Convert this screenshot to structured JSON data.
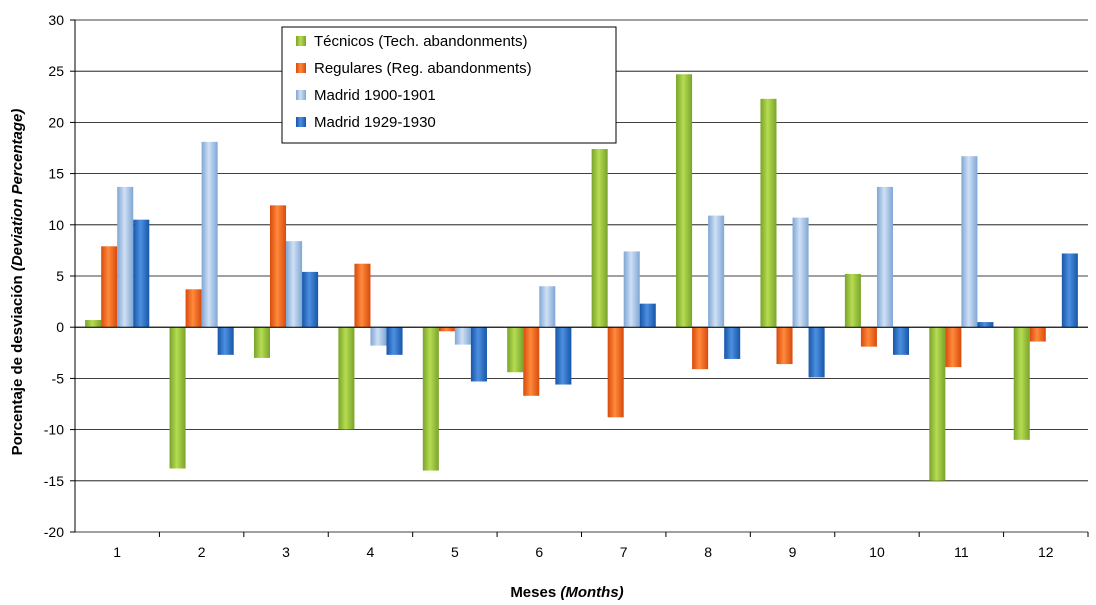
{
  "chart_data": {
    "type": "bar",
    "title": "",
    "xlabel": {
      "main": "Meses ",
      "italic": "(Months)"
    },
    "ylabel": {
      "main": "Porcentaje de desviación ",
      "italic": "(Deviation Percentage)"
    },
    "ylim": [
      -20,
      30
    ],
    "ytick_step": 5,
    "yticks": [
      "30",
      "25",
      "20",
      "15",
      "10",
      "5",
      "0",
      "-5",
      "-10",
      "-15",
      "-20"
    ],
    "categories": [
      "1",
      "2",
      "3",
      "4",
      "5",
      "6",
      "7",
      "8",
      "9",
      "10",
      "11",
      "12"
    ],
    "grid": true,
    "legend_position": "top-left",
    "series": [
      {
        "name": "Técnicos (Tech. abandonments)",
        "color": "#7aa32a",
        "highlight": "#b6dc52",
        "values": [
          0.7,
          -13.8,
          -3,
          -10,
          -14,
          -4.4,
          17.4,
          24.7,
          22.3,
          5.2,
          -15,
          -11
        ]
      },
      {
        "name": "Regulares (Reg. abandonments)",
        "color": "#d84a0c",
        "highlight": "#ff8a3c",
        "values": [
          7.9,
          3.7,
          11.9,
          6.2,
          -0.4,
          -6.7,
          -8.8,
          -4.1,
          -3.6,
          -1.9,
          -3.9,
          -1.4
        ]
      },
      {
        "name": "Madrid 1900-1901",
        "color": "#7fa6d4",
        "highlight": "#cfe0f5",
        "values": [
          13.7,
          18.1,
          8.4,
          -1.8,
          -1.7,
          4,
          7.4,
          10.9,
          10.7,
          13.7,
          16.7,
          0
        ]
      },
      {
        "name": "Madrid 1929-1930",
        "color": "#1756a8",
        "highlight": "#4d8fe0",
        "values": [
          10.5,
          -2.7,
          5.4,
          -2.7,
          -5.3,
          -5.6,
          2.3,
          -3.1,
          -4.9,
          -2.7,
          0.5,
          7.2
        ]
      }
    ]
  }
}
